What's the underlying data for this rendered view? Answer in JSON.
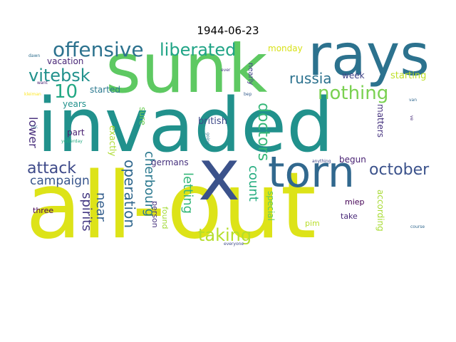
{
  "title": "1944-06-23",
  "words": [
    {
      "text": "sunk",
      "color": "#5ec962"
    },
    {
      "text": "invaded",
      "color": "#21918c"
    },
    {
      "text": "all-out",
      "color": "#dde318"
    },
    {
      "text": "rays",
      "color": "#2c728e"
    },
    {
      "text": "torn",
      "color": "#31688e"
    },
    {
      "text": "x",
      "color": "#3b528b"
    },
    {
      "text": "offensive",
      "color": "#2c728e"
    },
    {
      "text": "liberated",
      "color": "#20a486"
    },
    {
      "text": "vitebsk",
      "color": "#21918c"
    },
    {
      "text": "10",
      "color": "#22a884"
    },
    {
      "text": "nothing",
      "color": "#7ad151"
    },
    {
      "text": "russia",
      "color": "#2c728e"
    },
    {
      "text": "doctors",
      "color": "#35b779"
    },
    {
      "text": "october",
      "color": "#3b528b"
    },
    {
      "text": "taking",
      "color": "#b5de2b"
    },
    {
      "text": "attack",
      "color": "#3e4a89"
    },
    {
      "text": "campaign",
      "color": "#39568c"
    },
    {
      "text": "count",
      "color": "#27ad81"
    },
    {
      "text": "operation",
      "color": "#31688e"
    },
    {
      "text": "russians",
      "color": "#2c728e"
    },
    {
      "text": "spirits",
      "color": "#443983"
    },
    {
      "text": "near",
      "color": "#355f8d"
    },
    {
      "text": "cherbourg",
      "color": "#2a788e"
    },
    {
      "text": "letting",
      "color": "#35b779"
    },
    {
      "text": "lower",
      "color": "#472d7b"
    },
    {
      "text": "monday",
      "color": "#d8e219"
    },
    {
      "text": "vacation",
      "color": "#482677"
    },
    {
      "text": "starting",
      "color": "#bddf26"
    },
    {
      "text": "week",
      "color": "#414487"
    },
    {
      "text": "started",
      "color": "#2a788e"
    },
    {
      "text": "years",
      "color": "#21918c"
    },
    {
      "text": "british",
      "color": "#3e4a89"
    },
    {
      "text": "part",
      "color": "#481f70"
    },
    {
      "text": "sure",
      "color": "#6ece58"
    },
    {
      "text": "germans",
      "color": "#46327e"
    },
    {
      "text": "exactly",
      "color": "#addc30"
    },
    {
      "text": "begun",
      "color": "#482173"
    },
    {
      "text": "matters",
      "color": "#46337f"
    },
    {
      "text": "special",
      "color": "#5ec962"
    },
    {
      "text": "according",
      "color": "#a8db34"
    },
    {
      "text": "potatoes",
      "color": "#3f4889"
    },
    {
      "text": "miep",
      "color": "#440154"
    },
    {
      "text": "take",
      "color": "#482878"
    },
    {
      "text": "three",
      "color": "#440154"
    },
    {
      "text": "person",
      "color": "#46327e"
    },
    {
      "text": "found",
      "color": "#a2da37"
    },
    {
      "text": "pim",
      "color": "#b8de29"
    },
    {
      "text": "nearly",
      "color": "#424086"
    },
    {
      "text": "everyone",
      "color": "#3e4a89"
    },
    {
      "text": "course",
      "color": "#31688e"
    },
    {
      "text": "anything",
      "color": "#404688"
    },
    {
      "text": "dawn",
      "color": "#2e6e8e"
    },
    {
      "text": "want",
      "color": "#482475"
    },
    {
      "text": "kleiman",
      "color": "#fde725"
    },
    {
      "text": "mr.",
      "color": "#2e6e8e"
    },
    {
      "text": "yesterday",
      "color": "#25ab82"
    },
    {
      "text": "ever",
      "color": "#443a83"
    },
    {
      "text": "bep",
      "color": "#365d8d"
    },
    {
      "text": "van",
      "color": "#31688e"
    },
    {
      "text": "going",
      "color": "#2a788e"
    },
    {
      "text": "ve",
      "color": "#472c7a"
    }
  ]
}
